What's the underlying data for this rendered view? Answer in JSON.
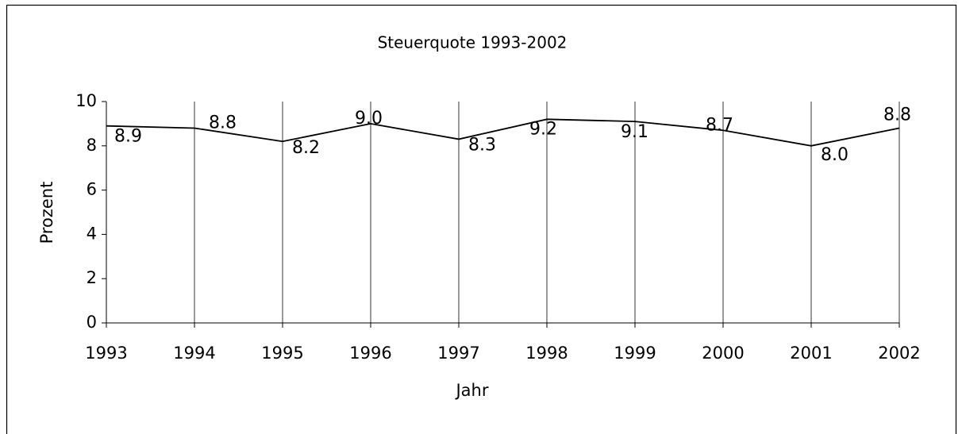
{
  "chart_data": {
    "type": "line",
    "title": "Steuerquote 1993-2002",
    "x_label": "Jahr",
    "y_label": "Prozent",
    "categories": [
      "1993",
      "1994",
      "1995",
      "1996",
      "1997",
      "1998",
      "1999",
      "2000",
      "2001",
      "2002"
    ],
    "series": [
      {
        "name": "Steuerquote",
        "color": "#000000",
        "values": [
          8.9,
          8.8,
          8.2,
          9,
          8.3,
          9.2,
          9.1,
          8.7,
          8,
          8.8
        ],
        "value_labels": [
          "8.9",
          "8.8",
          "8.2",
          "9.0",
          "8.3",
          "9.2",
          "9.1",
          "8.7",
          "8.0",
          "8.8"
        ]
      }
    ],
    "ylim": [
      0,
      10
    ],
    "yticks": [
      0,
      2,
      4,
      6,
      8,
      10
    ],
    "grid": true
  }
}
